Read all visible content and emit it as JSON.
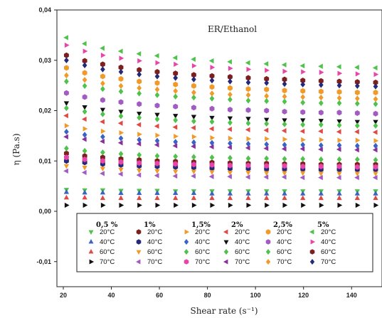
{
  "chart_data": {
    "type": "scatter",
    "title": "",
    "annotation": "ER/Ethanol",
    "xlabel": "Shear rate (s⁻¹)",
    "ylabel": "η (Pa.s)",
    "xlim": [
      20,
      150
    ],
    "ylim": [
      -0.017,
      0.04
    ],
    "xticks": [
      "20",
      "40",
      "60",
      "80",
      "100",
      "120",
      "140"
    ],
    "yticks": [
      "-0,01",
      "0,00",
      "0,01",
      "0,02",
      "0,03",
      "0,04"
    ],
    "ytick_values": [
      -0.01,
      0.0,
      0.01,
      0.02,
      0.03,
      0.04
    ],
    "xtick_values": [
      20,
      40,
      60,
      80,
      100,
      120,
      140
    ],
    "legend_placement": "bottom-center",
    "x": [
      21.3,
      28.9,
      36.4,
      44.0,
      51.6,
      59.1,
      66.7,
      74.3,
      81.9,
      89.4,
      97.0,
      104.6,
      112.1,
      119.7,
      127.3,
      134.9,
      142.4,
      150.0
    ],
    "groups": [
      {
        "name": "0,5 %",
        "series": [
          {
            "name": "20°C",
            "color": "#4ec24a",
            "marker": "tri-down",
            "values": [
              0.0043,
              0.0042,
              0.0042,
              0.0041,
              0.0041,
              0.0041,
              0.004,
              0.004,
              0.004,
              0.004,
              0.004,
              0.004,
              0.004,
              0.004,
              0.004,
              0.004,
              0.004,
              0.004
            ]
          },
          {
            "name": "40°C",
            "color": "#3a63c4",
            "marker": "tri-up",
            "values": [
              0.0038,
              0.0037,
              0.0037,
              0.0036,
              0.0036,
              0.0036,
              0.0036,
              0.0036,
              0.0035,
              0.0035,
              0.0035,
              0.0035,
              0.0035,
              0.0035,
              0.0035,
              0.0035,
              0.0035,
              0.0035
            ]
          },
          {
            "name": "60°C",
            "color": "#e04a44",
            "marker": "tri-up",
            "values": [
              0.0027,
              0.0027,
              0.0026,
              0.0026,
              0.0026,
              0.0026,
              0.0026,
              0.0026,
              0.0026,
              0.0026,
              0.0026,
              0.0026,
              0.0026,
              0.0026,
              0.0026,
              0.0026,
              0.0026,
              0.0026
            ]
          },
          {
            "name": "70°C",
            "color": "#111111",
            "marker": "tri-right",
            "values": [
              0.0012,
              0.0012,
              0.0012,
              0.0012,
              0.0012,
              0.0012,
              0.0012,
              0.0012,
              0.0012,
              0.0012,
              0.0012,
              0.0012,
              0.0012,
              0.0012,
              0.0012,
              0.0012,
              0.0012,
              0.0012
            ]
          }
        ]
      },
      {
        "name": "1%",
        "series": [
          {
            "name": "20°C",
            "color": "#7b1f1f",
            "marker": "hexagon",
            "values": [
              0.0115,
              0.011,
              0.0107,
              0.0104,
              0.0102,
              0.01,
              0.0099,
              0.0098,
              0.0097,
              0.0096,
              0.0095,
              0.0095,
              0.0094,
              0.0094,
              0.0093,
              0.0093,
              0.0093,
              0.0093
            ]
          },
          {
            "name": "40°C",
            "color": "#26287a",
            "marker": "hexagon",
            "values": [
              0.01,
              0.0097,
              0.0094,
              0.0092,
              0.009,
              0.0089,
              0.0088,
              0.0087,
              0.0086,
              0.0085,
              0.0085,
              0.0084,
              0.0084,
              0.0084,
              0.0083,
              0.0083,
              0.0083,
              0.0083
            ]
          },
          {
            "name": "60°C",
            "color": "#f09a2a",
            "marker": "tri-down",
            "values": [
              0.009,
              0.0087,
              0.0085,
              0.0083,
              0.0081,
              0.008,
              0.0079,
              0.0079,
              0.0078,
              0.0077,
              0.0077,
              0.0076,
              0.0076,
              0.0076,
              0.0075,
              0.0075,
              0.0075,
              0.0075
            ]
          },
          {
            "name": "70°C",
            "color": "#a15bc2",
            "marker": "tri-left",
            "values": [
              0.008,
              0.0077,
              0.0075,
              0.0074,
              0.0072,
              0.0071,
              0.007,
              0.007,
              0.0069,
              0.0069,
              0.0068,
              0.0068,
              0.0068,
              0.0067,
              0.0067,
              0.0067,
              0.0067,
              0.0067
            ]
          }
        ]
      },
      {
        "name": "1,5%",
        "series": [
          {
            "name": "20°C",
            "color": "#f09a2a",
            "marker": "tri-right",
            "values": [
              0.017,
              0.0164,
              0.0159,
              0.0156,
              0.0153,
              0.0151,
              0.0149,
              0.0148,
              0.0146,
              0.0145,
              0.0144,
              0.0144,
              0.0143,
              0.0142,
              0.0142,
              0.0141,
              0.0141,
              0.014
            ]
          },
          {
            "name": "40°C",
            "color": "#3a63c4",
            "marker": "diamond",
            "values": [
              0.0158,
              0.0152,
              0.0148,
              0.0145,
              0.0142,
              0.014,
              0.0138,
              0.0137,
              0.0136,
              0.0135,
              0.0134,
              0.0133,
              0.0132,
              0.0132,
              0.0131,
              0.0131,
              0.013,
              0.013
            ]
          },
          {
            "name": "60°C",
            "color": "#4ec24a",
            "marker": "diamond",
            "values": [
              0.0125,
              0.012,
              0.0117,
              0.0114,
              0.0112,
              0.011,
              0.0109,
              0.0108,
              0.0107,
              0.0106,
              0.0105,
              0.0105,
              0.0104,
              0.0104,
              0.0103,
              0.0103,
              0.0103,
              0.0102
            ]
          },
          {
            "name": "70°C",
            "color": "#e845a8",
            "marker": "hexagon",
            "values": [
              0.0107,
              0.0103,
              0.01,
              0.0098,
              0.0096,
              0.0095,
              0.0094,
              0.0093,
              0.0092,
              0.0091,
              0.0091,
              0.009,
              0.009,
              0.0089,
              0.0089,
              0.0089,
              0.0088,
              0.0088
            ]
          }
        ]
      },
      {
        "name": "2%",
        "series": [
          {
            "name": "20°C",
            "color": "#e04a44",
            "marker": "tri-left",
            "values": [
              0.019,
              0.0183,
              0.0178,
              0.0175,
              0.0172,
              0.0169,
              0.0167,
              0.0166,
              0.0164,
              0.0163,
              0.0162,
              0.0161,
              0.016,
              0.0159,
              0.0159,
              0.0158,
              0.0158,
              0.0157
            ]
          },
          {
            "name": "40°C",
            "color": "#111111",
            "marker": "tri-down",
            "values": [
              0.0215,
              0.0207,
              0.0202,
              0.0198,
              0.0194,
              0.0192,
              0.019,
              0.0188,
              0.0186,
              0.0185,
              0.0184,
              0.0182,
              0.0181,
              0.0181,
              0.018,
              0.0179,
              0.0178,
              0.0178
            ]
          },
          {
            "name": "60°C",
            "color": "#4ec24a",
            "marker": "diamond",
            "values": [
              0.0205,
              0.0198,
              0.0193,
              0.0189,
              0.0186,
              0.0183,
              0.0181,
              0.0179,
              0.0178,
              0.0176,
              0.0175,
              0.0174,
              0.0173,
              0.0172,
              0.0172,
              0.0171,
              0.017,
              0.017
            ]
          },
          {
            "name": "70°C",
            "color": "#8a2f9e",
            "marker": "tri-left",
            "values": [
              0.0148,
              0.0143,
              0.0139,
              0.0136,
              0.0134,
              0.0132,
              0.013,
              0.0129,
              0.0128,
              0.0127,
              0.0126,
              0.0125,
              0.0124,
              0.0124,
              0.0123,
              0.0123,
              0.0122,
              0.0122
            ]
          }
        ]
      },
      {
        "name": "2,5%",
        "series": [
          {
            "name": "20°C",
            "color": "#f09a2a",
            "marker": "hexagon",
            "values": [
              0.0285,
              0.0275,
              0.0268,
              0.0263,
              0.0258,
              0.0255,
              0.0252,
              0.0249,
              0.0247,
              0.0245,
              0.0243,
              0.0242,
              0.024,
              0.0239,
              0.0238,
              0.0237,
              0.0236,
              0.0236
            ]
          },
          {
            "name": "40°C",
            "color": "#a15bc2",
            "marker": "hexagon",
            "values": [
              0.0235,
              0.0227,
              0.0221,
              0.0217,
              0.0213,
              0.021,
              0.0208,
              0.0206,
              0.0204,
              0.0202,
              0.0201,
              0.02,
              0.0198,
              0.0197,
              0.0196,
              0.0196,
              0.0195,
              0.0194
            ]
          },
          {
            "name": "60°C",
            "color": "#4ec24a",
            "marker": "diamond",
            "values": [
              0.0258,
              0.0249,
              0.0243,
              0.0238,
              0.0234,
              0.0231,
              0.0228,
              0.0226,
              0.0224,
              0.0222,
              0.022,
              0.0219,
              0.0218,
              0.0216,
              0.0215,
              0.0215,
              0.0214,
              0.0213
            ]
          },
          {
            "name": "70°C",
            "color": "#f09a2a",
            "marker": "diamond",
            "values": [
              0.027,
              0.0261,
              0.0254,
              0.0249,
              0.0245,
              0.0242,
              0.0239,
              0.0236,
              0.0234,
              0.0232,
              0.0231,
              0.0229,
              0.0228,
              0.0227,
              0.0226,
              0.0225,
              0.0224,
              0.0223
            ]
          }
        ]
      },
      {
        "name": "5%",
        "series": [
          {
            "name": "20°C",
            "color": "#4ec24a",
            "marker": "tri-left",
            "values": [
              0.0345,
              0.0333,
              0.0324,
              0.0318,
              0.0313,
              0.0309,
              0.0305,
              0.0302,
              0.0299,
              0.0297,
              0.0295,
              0.0293,
              0.0291,
              0.0289,
              0.0288,
              0.0287,
              0.0286,
              0.0285
            ]
          },
          {
            "name": "40°C",
            "color": "#e845a8",
            "marker": "tri-right",
            "values": [
              0.033,
              0.0318,
              0.031,
              0.0304,
              0.0299,
              0.0295,
              0.0292,
              0.0289,
              0.0286,
              0.0284,
              0.0282,
              0.028,
              0.0278,
              0.0277,
              0.0276,
              0.0274,
              0.0273,
              0.0272
            ]
          },
          {
            "name": "60°C",
            "color": "#7b1f1f",
            "marker": "hexagon",
            "values": [
              0.031,
              0.0299,
              0.0292,
              0.0286,
              0.0281,
              0.0277,
              0.0274,
              0.0271,
              0.0269,
              0.0267,
              0.0265,
              0.0263,
              0.0262,
              0.026,
              0.0259,
              0.0258,
              0.0257,
              0.0256
            ]
          },
          {
            "name": "70°C",
            "color": "#26287a",
            "marker": "diamond",
            "values": [
              0.03,
              0.029,
              0.0282,
              0.0277,
              0.0272,
              0.0268,
              0.0265,
              0.0262,
              0.026,
              0.0258,
              0.0256,
              0.0255,
              0.0253,
              0.0252,
              0.0251,
              0.025,
              0.0249,
              0.0248
            ]
          }
        ]
      }
    ]
  }
}
